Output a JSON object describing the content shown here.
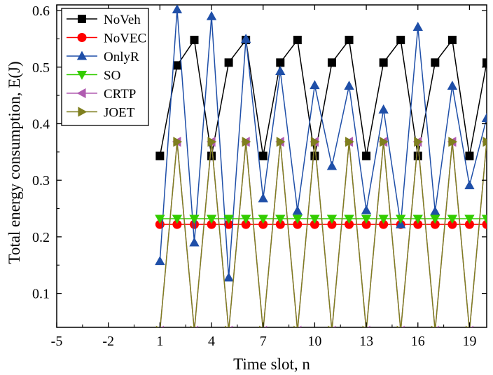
{
  "chart_data": {
    "type": "line",
    "xlabel": "Time  slot, n",
    "ylabel": "Total  energy  consumption, E(J)",
    "xlim": [
      -5,
      20
    ],
    "ylim": [
      0.04,
      0.61
    ],
    "x_ticks": [
      -5,
      -2,
      1,
      4,
      7,
      10,
      13,
      16,
      19
    ],
    "y_ticks": [
      0.1,
      0.2,
      0.3,
      0.4,
      0.5,
      0.6
    ],
    "x_tick_labels": [
      "-5",
      "-2",
      "1",
      "4",
      "7",
      "10",
      "13",
      "16",
      "19"
    ],
    "y_tick_labels": [
      "0.1",
      "0.2",
      "0.3",
      "0.4",
      "0.5",
      "0.6"
    ],
    "legend_position": "top-left",
    "grid": false,
    "x": [
      1,
      2,
      3,
      4,
      5,
      6,
      7,
      8,
      9,
      10,
      11,
      12,
      13,
      14,
      15,
      16,
      17,
      18,
      19,
      20
    ],
    "series": [
      {
        "name": "NoVeh",
        "color": "#000000",
        "marker": "square",
        "values": [
          0.343,
          0.503,
          0.548,
          0.343,
          0.508,
          0.548,
          0.343,
          0.508,
          0.548,
          0.343,
          0.508,
          0.548,
          0.343,
          0.508,
          0.548,
          0.343,
          0.508,
          0.548,
          0.343,
          0.508
        ]
      },
      {
        "name": "NoVEC",
        "color": "#ff0000",
        "marker": "circle",
        "values": [
          0.222,
          0.222,
          0.222,
          0.222,
          0.222,
          0.222,
          0.222,
          0.222,
          0.222,
          0.222,
          0.222,
          0.222,
          0.222,
          0.222,
          0.222,
          0.222,
          0.222,
          0.222,
          0.222,
          0.222
        ]
      },
      {
        "name": "OnlyR",
        "color": "#1f4fa8",
        "marker": "triangle-up",
        "values": [
          0.157,
          0.602,
          0.19,
          0.59,
          0.128,
          0.55,
          0.268,
          0.493,
          0.246,
          0.468,
          0.325,
          0.467,
          0.247,
          0.425,
          0.222,
          0.571,
          0.245,
          0.467,
          0.291,
          0.41
        ]
      },
      {
        "name": "SO",
        "color": "#33cc00",
        "marker": "triangle-down",
        "values": [
          0.232,
          0.232,
          0.232,
          0.232,
          0.232,
          0.232,
          0.232,
          0.232,
          0.232,
          0.232,
          0.232,
          0.232,
          0.232,
          0.232,
          0.232,
          0.232,
          0.232,
          0.232,
          0.232,
          0.232
        ]
      },
      {
        "name": "CRTP",
        "color": "#b05cb0",
        "marker": "triangle-left",
        "values": [
          0.034,
          0.368,
          0.034,
          0.368,
          0.034,
          0.368,
          0.034,
          0.368,
          0.034,
          0.368,
          0.034,
          0.368,
          0.034,
          0.368,
          0.034,
          0.368,
          0.034,
          0.368,
          0.034,
          0.368
        ]
      },
      {
        "name": "JOET",
        "color": "#7f7f1f",
        "marker": "triangle-right",
        "values": [
          0.034,
          0.368,
          0.034,
          0.368,
          0.034,
          0.368,
          0.034,
          0.368,
          0.034,
          0.368,
          0.034,
          0.368,
          0.034,
          0.368,
          0.034,
          0.368,
          0.034,
          0.368,
          0.034,
          0.368
        ]
      }
    ]
  }
}
